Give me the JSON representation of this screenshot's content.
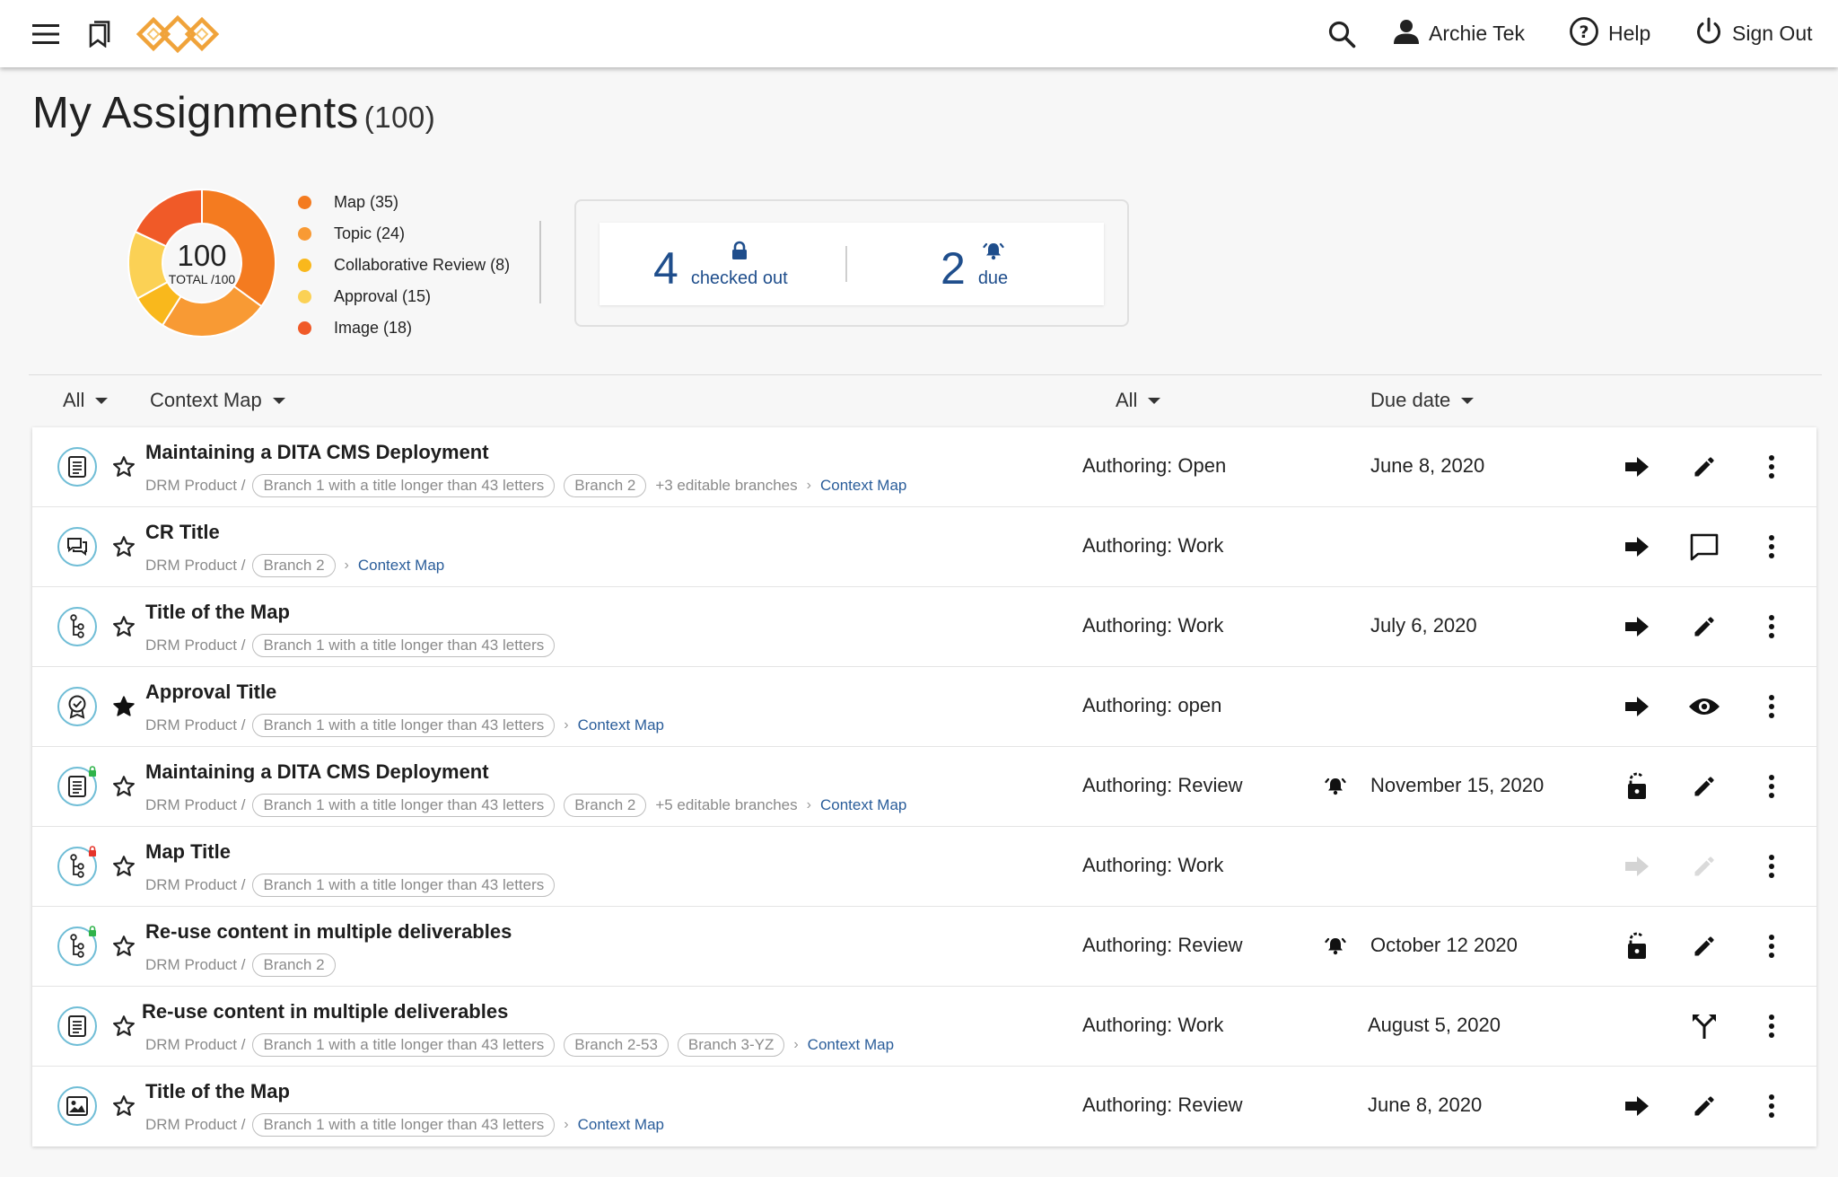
{
  "header": {
    "user_name": "Archie Tek",
    "help_label": "Help",
    "signout_label": "Sign Out"
  },
  "page": {
    "title": "My Assignments",
    "count": "(100)"
  },
  "summary": {
    "total": "100",
    "total_label": "TOTAL /100",
    "legend": [
      {
        "label": "Map (35)",
        "value": 35,
        "color": "#f47b20"
      },
      {
        "label": "Topic (24)",
        "value": 24,
        "color": "#f89a34"
      },
      {
        "label": "Collaborative Review (8)",
        "value": 8,
        "color": "#f9b81c"
      },
      {
        "label": "Approval (15)",
        "value": 15,
        "color": "#fbd155"
      },
      {
        "label": "Image (18)",
        "value": 18,
        "color": "#f05a28"
      }
    ],
    "checked_out_count": "4",
    "checked_out_label": "checked out",
    "due_count": "2",
    "due_label": "due"
  },
  "filters": {
    "type": "All",
    "context": "Context Map",
    "status": "All",
    "sort": "Due date"
  },
  "rows": [
    {
      "title": "Maintaining a DITA CMS Deployment",
      "product": "DRM Product /",
      "chips": [
        "Branch 1 with a title longer than 43 letters",
        "Branch 2"
      ],
      "more": "+3 editable branches",
      "context": "Context Map",
      "status": "Authoring: Open",
      "date": "June 8, 2020"
    },
    {
      "title": "CR Title",
      "product": "DRM Product /",
      "chips": [
        "Branch 2"
      ],
      "more": "",
      "context": "Context Map",
      "status": "Authoring: Work",
      "date": ""
    },
    {
      "title": "Title of the Map",
      "product": "DRM Product /",
      "chips": [
        "Branch 1 with a title longer than 43 letters"
      ],
      "more": "",
      "context": "",
      "status": "Authoring: Work",
      "date": "July 6, 2020"
    },
    {
      "title": "Approval Title",
      "product": "DRM Product /",
      "chips": [
        "Branch 1 with a title longer than 43 letters"
      ],
      "more": "",
      "context": "Context Map",
      "status": "Authoring: open",
      "date": ""
    },
    {
      "title": "Maintaining a DITA CMS Deployment",
      "product": "DRM Product /",
      "chips": [
        "Branch 1 with a title longer than 43 letters",
        "Branch 2"
      ],
      "more": "+5 editable branches",
      "context": "Context Map",
      "status": "Authoring: Review",
      "date": "November 15, 2020"
    },
    {
      "title": "Map Title",
      "product": "DRM Product /",
      "chips": [
        "Branch 1 with a title longer than 43 letters"
      ],
      "more": "",
      "context": "",
      "status": "Authoring: Work",
      "date": ""
    },
    {
      "title": "Re-use content in multiple deliverables",
      "product": "DRM Product /",
      "chips": [
        "Branch 2"
      ],
      "more": "",
      "context": "",
      "status": "Authoring: Review",
      "date": "October 12 2020"
    },
    {
      "title": "Re-use content in multiple deliverables",
      "product": "DRM Product /",
      "chips": [
        "Branch 1 with a title longer than 43 letters",
        "Branch 2-53",
        "Branch 3-YZ"
      ],
      "more": "",
      "context": "Context Map",
      "status": "Authoring: Work",
      "date": "August 5, 2020"
    },
    {
      "title": "Title of the Map",
      "product": "DRM Product /",
      "chips": [
        "Branch 1 with a title longer than 43 letters"
      ],
      "more": "",
      "context": "Context Map",
      "status": "Authoring: Review",
      "date": "June 8, 2020"
    }
  ]
}
